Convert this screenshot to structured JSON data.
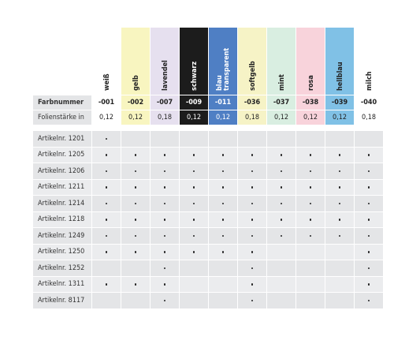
{
  "columns": [
    {
      "name": "weiß",
      "color": "#ffffff",
      "text_color": "#222222"
    },
    {
      "name": "gelb",
      "color": "#f8f5c0",
      "text_color": "#222222"
    },
    {
      "name": "lavendel",
      "color": "#e6e0ef",
      "text_color": "#222222"
    },
    {
      "name": "schwarz",
      "color": "#1c1c1c",
      "text_color": "#ffffff"
    },
    {
      "name": "blau transparent",
      "color": "#4f7fc4",
      "text_color": "#ffffff"
    },
    {
      "name": "softgelb",
      "color": "#f6f3c6",
      "text_color": "#222222"
    },
    {
      "name": "mint",
      "color": "#d9eee1",
      "text_color": "#222222"
    },
    {
      "name": "rosa",
      "color": "#f8d3db",
      "text_color": "#222222"
    },
    {
      "name": "hellblau",
      "color": "#80c1e6",
      "text_color": "#222222"
    },
    {
      "name": "milch",
      "color": "#ffffff",
      "text_color": "#222222"
    }
  ],
  "header_rows": [
    {
      "label": "Farbnummer",
      "cells": [
        "-001",
        "-002",
        "-007",
        "-009",
        "-011",
        "-036",
        "-037",
        "-038",
        "-039",
        "-040"
      ]
    },
    {
      "label": "Folienstärke in",
      "cells": [
        "0,12",
        "0,12",
        "0,18",
        "0,12",
        "0,12",
        "0,18",
        "0,12",
        "0,12",
        "0,12",
        "0,18"
      ]
    }
  ],
  "articles": [
    {
      "label": "Artikelnr. 1201",
      "available": [
        true,
        false,
        false,
        false,
        false,
        false,
        false,
        false,
        false,
        false
      ]
    },
    {
      "label": "Artikelnr. 1205",
      "available": [
        true,
        true,
        true,
        true,
        true,
        true,
        true,
        true,
        true,
        true
      ]
    },
    {
      "label": "Artikelnr. 1206",
      "available": [
        true,
        true,
        true,
        true,
        true,
        true,
        true,
        true,
        true,
        true
      ]
    },
    {
      "label": "Artikelnr. 1211",
      "available": [
        true,
        true,
        true,
        true,
        true,
        true,
        true,
        true,
        true,
        true
      ]
    },
    {
      "label": "Artikelnr. 1214",
      "available": [
        true,
        true,
        true,
        true,
        true,
        true,
        true,
        true,
        true,
        true
      ]
    },
    {
      "label": "Artikelnr. 1218",
      "available": [
        true,
        true,
        true,
        true,
        true,
        true,
        true,
        true,
        true,
        true
      ]
    },
    {
      "label": "Artikelnr. 1249",
      "available": [
        true,
        true,
        true,
        true,
        true,
        true,
        true,
        true,
        true,
        true
      ]
    },
    {
      "label": "Artikelnr. 1250",
      "available": [
        true,
        true,
        true,
        true,
        true,
        true,
        false,
        false,
        false,
        true
      ]
    },
    {
      "label": "Artikelnr. 1252",
      "available": [
        false,
        false,
        true,
        false,
        false,
        true,
        false,
        false,
        false,
        true
      ]
    },
    {
      "label": "Artikelnr. 1311",
      "available": [
        true,
        true,
        true,
        false,
        false,
        true,
        false,
        false,
        false,
        true
      ]
    },
    {
      "label": "Artikelnr. 8117",
      "available": [
        false,
        false,
        true,
        false,
        false,
        true,
        false,
        false,
        false,
        true
      ]
    }
  ]
}
